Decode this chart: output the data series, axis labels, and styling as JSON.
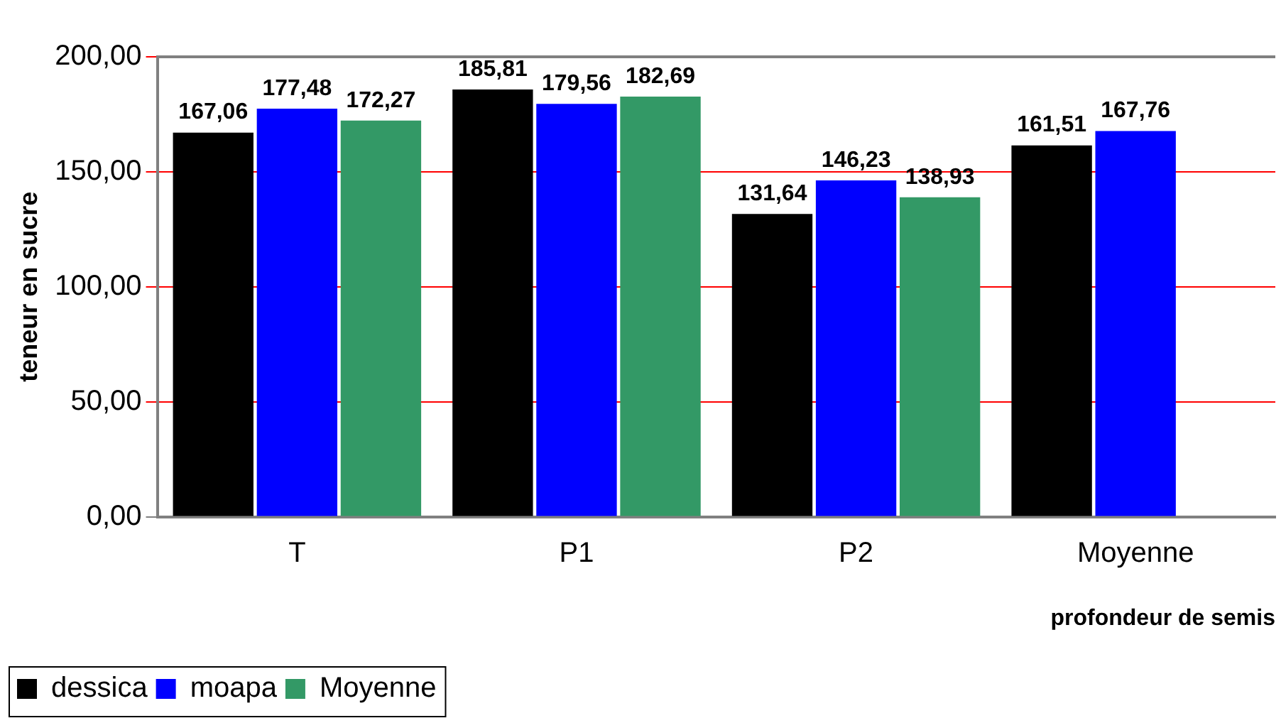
{
  "chart_data": {
    "type": "bar",
    "xlabel": "profondeur de semis",
    "ylabel": "teneur en sucre",
    "categories": [
      "T",
      "P1",
      "P2",
      "Moyenne"
    ],
    "series": [
      {
        "name": "dessica",
        "color": "#000000",
        "values": [
          167.06,
          185.81,
          131.64,
          161.51
        ],
        "value_labels": [
          "167,06",
          "185,81",
          "131,64",
          "161,51"
        ]
      },
      {
        "name": "moapa",
        "color": "#0000ff",
        "values": [
          177.48,
          179.56,
          146.23,
          167.76
        ],
        "value_labels": [
          "177,48",
          "179,56",
          "146,23",
          "167,76"
        ]
      },
      {
        "name": "Moyenne",
        "color": "#339966",
        "values": [
          172.27,
          182.69,
          138.93,
          null
        ],
        "value_labels": [
          "172,27",
          "182,69",
          "138,93",
          null
        ]
      }
    ],
    "ylim": [
      0,
      200
    ],
    "yticks": [
      {
        "value": 0,
        "label": "0,00"
      },
      {
        "value": 50,
        "label": "50,00"
      },
      {
        "value": 100,
        "label": "100,00"
      },
      {
        "value": 150,
        "label": "150,00"
      },
      {
        "value": 200,
        "label": "200,00"
      }
    ],
    "grid": "y",
    "legend": "bottom left"
  }
}
